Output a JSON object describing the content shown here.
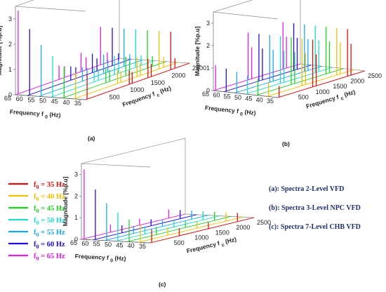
{
  "figure": {
    "axis_z_label": "Magnitude [%p.u]",
    "axis_y_label_prefix": "Frequency f",
    "axis_y_label_sub": "0",
    "axis_y_label_unit": "(Hz)",
    "axis_x_label_prefix": "Frequency f",
    "axis_x_label_sub": "c",
    "axis_x_label_unit": "(Hz)"
  },
  "legend": [
    {
      "label": "f",
      "sub": "0",
      "rest": "= 35 Hz",
      "color": "#e01010"
    },
    {
      "label": "f",
      "sub": "0",
      "rest": "= 40 Hz",
      "color": "#f0c000"
    },
    {
      "label": "f",
      "sub": "0",
      "rest": "= 45 Hz",
      "color": "#22d022"
    },
    {
      "label": "f",
      "sub": "0",
      "rest": "= 50 Hz",
      "color": "#20d8c8"
    },
    {
      "label": "f",
      "sub": "0",
      "rest": "= 55 Hz",
      "color": "#18a8f0"
    },
    {
      "label": "f",
      "sub": "0",
      "rest": "= 60 Hz",
      "color": "#2010d8"
    },
    {
      "label": "f",
      "sub": "0",
      "rest": "= 65 Hz",
      "color": "#e020e0"
    }
  ],
  "notes": [
    "(a): Spectra 2-Level VFD",
    "(b): Spectra 3-Level NPC VFD",
    "(c): Spectra 7-Level CHB VFD"
  ],
  "chart_data": [
    {
      "type": "bar",
      "panel": "(a)",
      "title": "",
      "xlabel": "Frequency f_c (Hz)",
      "ylabel": "Frequency f_0 (Hz)",
      "zlabel": "Magnitude [%p.u]",
      "x_ticks": [
        "0",
        "500",
        "1000",
        "1500",
        "2000",
        "2500"
      ],
      "y_ticks": [
        "35",
        "40",
        "45",
        "50",
        "55",
        "60",
        "65"
      ],
      "z_ticks": [
        "0",
        "1",
        "2",
        "3"
      ],
      "xlim": [
        0,
        2500
      ],
      "zlim": [
        0,
        3.5
      ],
      "series": [
        {
          "name": "f0 = 35 Hz",
          "f0": 35,
          "x": [
            35,
            1050,
            1120,
            1500,
            1580,
            2050,
            2150
          ],
          "values": [
            1.0,
            0.55,
            0.45,
            0.75,
            0.5,
            1.5,
            0.4
          ]
        },
        {
          "name": "f0 = 40 Hz",
          "f0": 40,
          "x": [
            40,
            1050,
            1130,
            1520,
            1600,
            2050,
            2160
          ],
          "values": [
            1.0,
            0.55,
            0.45,
            0.75,
            0.5,
            1.5,
            0.4
          ]
        },
        {
          "name": "f0 = 45 Hz",
          "f0": 45,
          "x": [
            45,
            1050,
            1140,
            1530,
            1620,
            2050,
            2170
          ],
          "values": [
            1.2,
            0.55,
            0.45,
            0.75,
            0.5,
            1.5,
            0.4
          ]
        },
        {
          "name": "f0 = 50 Hz",
          "f0": 50,
          "x": [
            50,
            1050,
            1150,
            1540,
            1640,
            2050,
            2180
          ],
          "values": [
            1.6,
            0.55,
            0.45,
            0.75,
            0.5,
            1.5,
            0.4
          ]
        },
        {
          "name": "f0 = 55 Hz",
          "f0": 55,
          "x": [
            55,
            1050,
            1160,
            1560,
            1660,
            2050,
            2190
          ],
          "values": [
            2.0,
            0.55,
            0.45,
            0.75,
            0.5,
            1.5,
            0.4
          ]
        },
        {
          "name": "f0 = 60 Hz",
          "f0": 60,
          "x": [
            60,
            1050,
            1170,
            1570,
            1680,
            2050,
            2200
          ],
          "values": [
            2.6,
            0.55,
            0.45,
            0.75,
            0.5,
            1.5,
            0.4
          ]
        },
        {
          "name": "f0 = 65 Hz",
          "f0": 65,
          "x": [
            65,
            1050,
            1180,
            1580,
            1700,
            2050,
            2210
          ],
          "values": [
            3.3,
            0.55,
            0.45,
            0.75,
            0.5,
            1.5,
            0.4
          ]
        }
      ]
    },
    {
      "type": "bar",
      "panel": "(b)",
      "title": "",
      "xlabel": "Frequency f_c (Hz)",
      "ylabel": "Frequency f_0 (Hz)",
      "zlabel": "Magnitude [%p.u]",
      "x_ticks": [
        "0",
        "500",
        "1000",
        "1500",
        "2000",
        "2500"
      ],
      "y_ticks": [
        "35",
        "40",
        "45",
        "50",
        "55",
        "60",
        "65"
      ],
      "z_ticks": [
        "0",
        "1",
        "2",
        "3"
      ],
      "xlim": [
        0,
        2500
      ],
      "zlim": [
        0,
        3.5
      ],
      "series": [
        {
          "name": "f0 = 35 Hz",
          "f0": 35,
          "x": [
            35,
            1000,
            1100,
            2000,
            2100
          ],
          "values": [
            0.5,
            2.1,
            1.4,
            2.1,
            1.4
          ]
        },
        {
          "name": "f0 = 40 Hz",
          "f0": 40,
          "x": [
            40,
            1000,
            1100,
            2000,
            2100
          ],
          "values": [
            0.6,
            2.1,
            1.4,
            2.1,
            1.4
          ]
        },
        {
          "name": "f0 = 45 Hz",
          "f0": 45,
          "x": [
            45,
            1000,
            1100,
            2000,
            2100
          ],
          "values": [
            0.7,
            2.1,
            1.4,
            2.1,
            1.4
          ]
        },
        {
          "name": "f0 = 50 Hz",
          "f0": 50,
          "x": [
            50,
            1000,
            1100,
            2000,
            2100
          ],
          "values": [
            0.8,
            2.1,
            1.4,
            2.1,
            1.4
          ]
        },
        {
          "name": "f0 = 55 Hz",
          "f0": 55,
          "x": [
            55,
            1000,
            1100,
            2000,
            2100
          ],
          "values": [
            0.9,
            2.1,
            1.4,
            2.1,
            1.4
          ]
        },
        {
          "name": "f0 = 60 Hz",
          "f0": 60,
          "x": [
            60,
            1000,
            1100,
            2000,
            2100
          ],
          "values": [
            1.0,
            2.1,
            1.4,
            2.1,
            1.4
          ]
        },
        {
          "name": "f0 = 65 Hz",
          "f0": 65,
          "x": [
            65,
            1000,
            1100,
            2000,
            2100
          ],
          "values": [
            1.1,
            2.1,
            1.4,
            2.1,
            1.4
          ]
        }
      ]
    },
    {
      "type": "bar",
      "panel": "(c)",
      "title": "",
      "xlabel": "Frequency f_c (Hz)",
      "ylabel": "Frequency f_0 (Hz)",
      "zlabel": "Magnitude [%p.u]",
      "x_ticks": [
        "0",
        "500",
        "1000",
        "1500",
        "2000",
        "2500"
      ],
      "y_ticks": [
        "35",
        "40",
        "45",
        "50",
        "55",
        "60",
        "65"
      ],
      "z_ticks": [
        "0",
        "1",
        "2",
        "3"
      ],
      "xlim": [
        0,
        2500
      ],
      "zlim": [
        0,
        3.5
      ],
      "series": [
        {
          "name": "f0 = 35 Hz",
          "f0": 35,
          "x": [
            35,
            700,
            1400,
            2100
          ],
          "values": [
            0.6,
            0.35,
            0.3,
            0.4
          ]
        },
        {
          "name": "f0 = 40 Hz",
          "f0": 40,
          "x": [
            40,
            700,
            1400,
            2100
          ],
          "values": [
            0.8,
            0.35,
            0.3,
            0.4
          ]
        },
        {
          "name": "f0 = 45 Hz",
          "f0": 45,
          "x": [
            45,
            700,
            1400,
            2100
          ],
          "values": [
            1.0,
            0.35,
            0.3,
            0.4
          ]
        },
        {
          "name": "f0 = 50 Hz",
          "f0": 50,
          "x": [
            50,
            700,
            1400,
            2100
          ],
          "values": [
            1.3,
            0.35,
            0.3,
            0.4
          ]
        },
        {
          "name": "f0 = 55 Hz",
          "f0": 55,
          "x": [
            55,
            700,
            1400,
            2100
          ],
          "values": [
            1.7,
            0.35,
            0.3,
            0.4
          ]
        },
        {
          "name": "f0 = 60 Hz",
          "f0": 60,
          "x": [
            60,
            700,
            1400,
            2100
          ],
          "values": [
            2.3,
            0.35,
            0.3,
            0.4
          ]
        },
        {
          "name": "f0 = 65 Hz",
          "f0": 65,
          "x": [
            65,
            700,
            1400,
            2100
          ],
          "values": [
            3.2,
            0.35,
            0.3,
            0.4
          ]
        }
      ]
    }
  ]
}
